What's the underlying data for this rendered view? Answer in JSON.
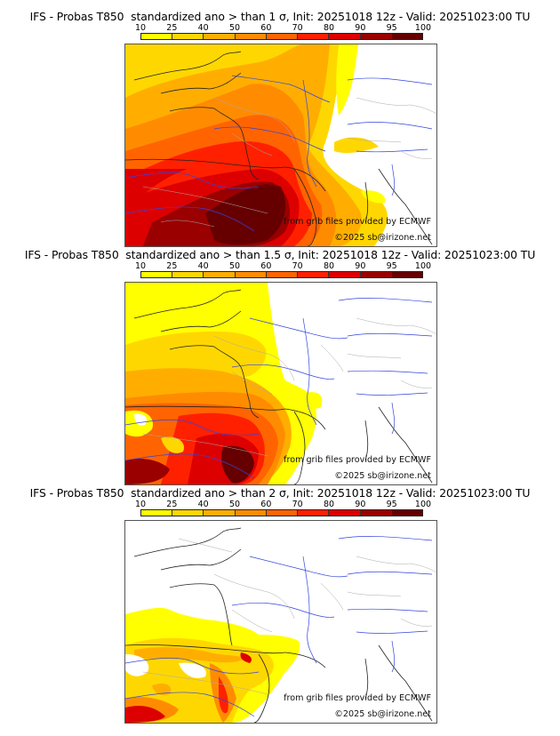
{
  "colorbar": {
    "ticks": [
      "10",
      "25",
      "40",
      "50",
      "60",
      "70",
      "80",
      "90",
      "95",
      "100"
    ],
    "colors": [
      "#ffff00",
      "#ffd700",
      "#ffae00",
      "#ff8c00",
      "#ff6400",
      "#ff2000",
      "#dd0000",
      "#9a0000",
      "#660000"
    ]
  },
  "panels": [
    {
      "title": "IFS - Probas T850  standardized ano > than 1 σ, Init: 20251018 12z - Valid: 20251023:00 TU",
      "threshold_sigma": 1,
      "credit_source": "from grib files provided by ECMWF",
      "credit_copyright": "©2025 sb@irizone.net"
    },
    {
      "title": "IFS - Probas T850  standardized ano > than 1.5 σ, Init: 20251018 12z - Valid: 20251023:00 TU",
      "threshold_sigma": 1.5,
      "credit_source": "from grib files provided by ECMWF",
      "credit_copyright": "©2025 sb@irizone.net"
    },
    {
      "title": "IFS - Probas T850  standardized ano > than 2 σ, Init: 20251018 12z - Valid: 20251023:00 TU",
      "threshold_sigma": 2,
      "credit_source": "from grib files provided by ECMWF",
      "credit_copyright": "©2025 sb@irizone.net"
    }
  ]
}
